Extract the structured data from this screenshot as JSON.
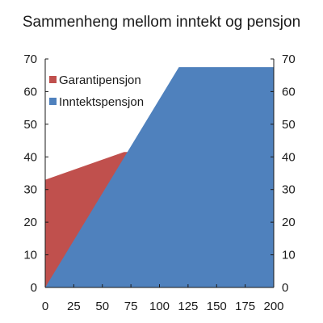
{
  "chart_data": {
    "type": "area",
    "title": "Sammenheng mellom inntekt og pensjon",
    "xlabel": "",
    "ylabel": "",
    "xlim": [
      0,
      200
    ],
    "ylim": [
      0,
      70
    ],
    "x_ticks": [
      "0",
      "25",
      "50",
      "75",
      "100",
      "125",
      "150",
      "175",
      "200"
    ],
    "y_ticks": [
      "0",
      "10",
      "20",
      "30",
      "40",
      "50",
      "60",
      "70"
    ],
    "y_ticks_right": [
      "0",
      "10",
      "20",
      "30",
      "40",
      "50",
      "60",
      "70"
    ],
    "grid": false,
    "legend_position": "top-left",
    "series": [
      {
        "name": "Garantipensjon",
        "color": "#c0504d",
        "x": [
          0,
          69,
          200
        ],
        "y": [
          33,
          41.5,
          41.5
        ]
      },
      {
        "name": "Inntektspensjon",
        "color": "#4f81bd",
        "x": [
          0,
          117,
          200
        ],
        "y": [
          0,
          67.5,
          67.5
        ]
      }
    ]
  }
}
